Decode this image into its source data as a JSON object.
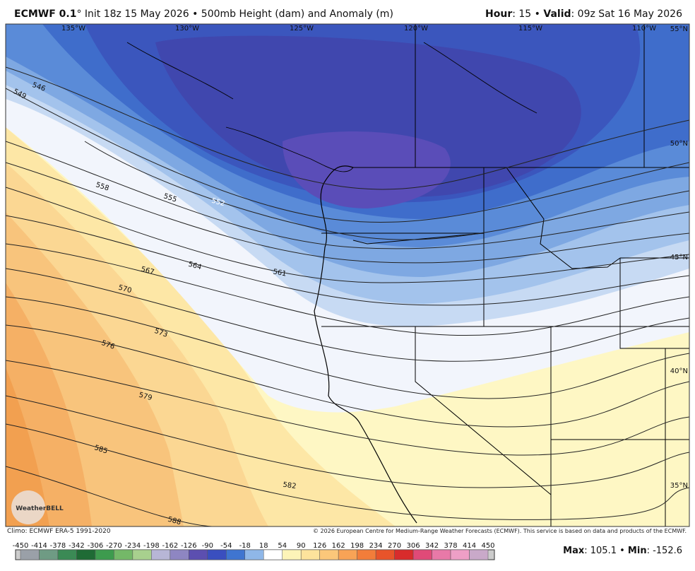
{
  "header": {
    "model": "ECMWF 0.1",
    "rest": "° Init 18z 15 May 2026 • 500mb Height (dam) and Anomaly (m)",
    "hour_key": "Hour",
    "hour_val": ": 15 • ",
    "valid_key": "Valid",
    "valid_val": ": 09z Sat 16 May 2026"
  },
  "map": {
    "lon_labels": [
      "135°W",
      "130°W",
      "125°W",
      "120°W",
      "115°W",
      "110°W"
    ],
    "lat_labels": [
      "55°N",
      "50°N",
      "45°N",
      "40°N",
      "35°N"
    ],
    "contour_labels": [
      "546",
      "549",
      "552",
      "555",
      "558",
      "561",
      "564",
      "567",
      "570",
      "573",
      "576",
      "579",
      "582",
      "585",
      "588"
    ],
    "logo": "WeatherBELL"
  },
  "footer": {
    "climo": "Climo: ECMWF ERA-5 1991-2020",
    "copyright": "© 2026 European Centre for Medium-Range Weather Forecasts (ECMWF). This service is based on data and products of the ECMWF.",
    "colorbar_ticks": [
      "-450",
      "-414",
      "-378",
      "-342",
      "-306",
      "-270",
      "-234",
      "-198",
      "-162",
      "-126",
      "-90",
      "-54",
      "-18",
      "18",
      "54",
      "90",
      "126",
      "162",
      "198",
      "234",
      "270",
      "306",
      "342",
      "378",
      "414",
      "450"
    ],
    "max_key": "Max",
    "max_val": ": 105.1 • ",
    "min_key": "Min",
    "min_val": ": -152.6"
  }
}
